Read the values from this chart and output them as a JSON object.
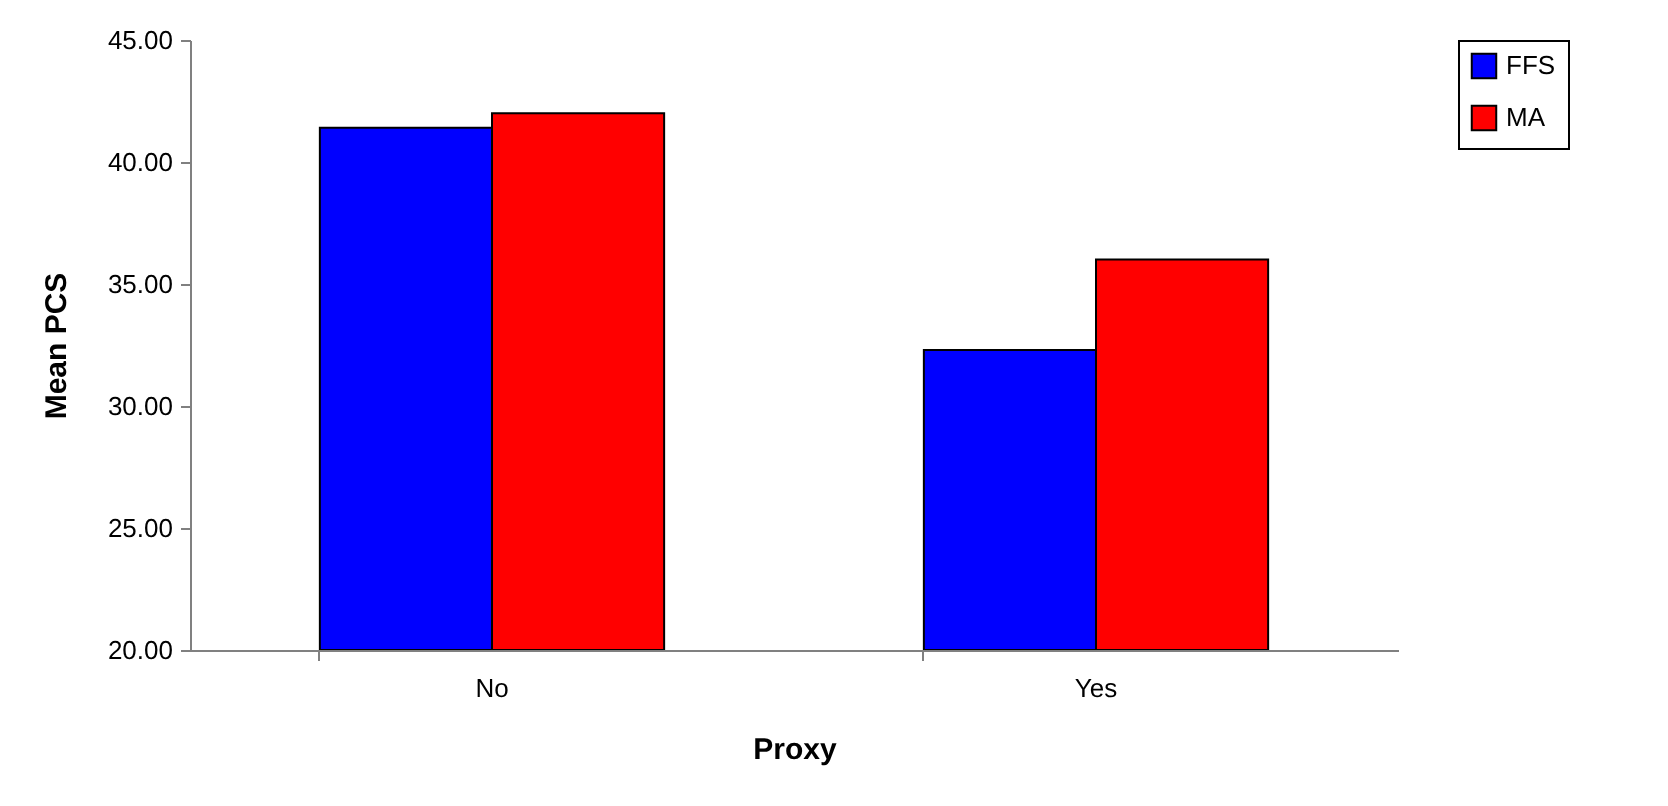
{
  "chart_data": {
    "type": "bar",
    "xlabel": "Proxy",
    "ylabel": "Mean PCS",
    "categories": [
      "No",
      "Yes"
    ],
    "series": [
      {
        "name": "FFS",
        "color": "#0000ff",
        "values": [
          41.4,
          32.3
        ]
      },
      {
        "name": "MA",
        "color": "#ff0000",
        "values": [
          42.0,
          36.0
        ]
      }
    ],
    "ylim": [
      20,
      45
    ],
    "yticks": [
      {
        "value": 20,
        "label": "20.00"
      },
      {
        "value": 25,
        "label": "25.00"
      },
      {
        "value": 30,
        "label": "30.00"
      },
      {
        "value": 35,
        "label": "35.00"
      },
      {
        "value": 40,
        "label": "40.00"
      },
      {
        "value": 45,
        "label": "45.00"
      }
    ],
    "grid": false,
    "legend": "right"
  }
}
